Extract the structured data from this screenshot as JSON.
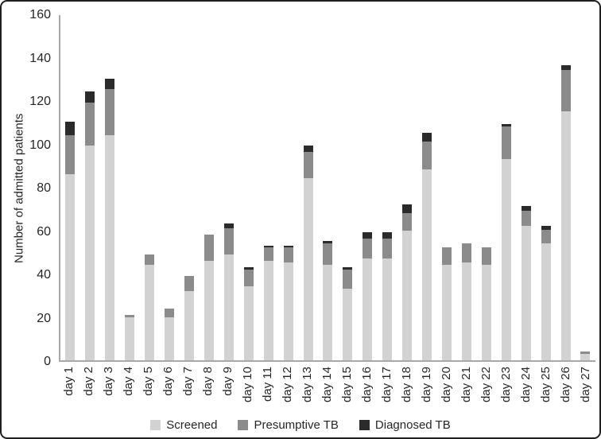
{
  "chart_data": {
    "type": "bar",
    "stacked": true,
    "ylabel": "Number of admitted patients",
    "xlabel": "",
    "ylim": [
      0,
      160
    ],
    "ytick_step": 20,
    "yticks": [
      0,
      20,
      40,
      60,
      80,
      100,
      120,
      140,
      160
    ],
    "grid": false,
    "legend_position": "bottom",
    "categories": [
      "day 1",
      "day 2",
      "day 3",
      "day 4",
      "day 5",
      "day 6",
      "day 7",
      "day 8",
      "day 9",
      "day 10",
      "day 11",
      "day 12",
      "day 13",
      "day 14",
      "day 15",
      "day 16",
      "day 17",
      "day 18",
      "day 19",
      "day 20",
      "day 21",
      "day 22",
      "day 23",
      "day 24",
      "day 25",
      "day 26",
      "day 27"
    ],
    "series": [
      {
        "name": "Screened",
        "color": "#d2d2d2",
        "values": [
          86,
          99,
          104,
          20,
          44,
          20,
          32,
          46,
          49,
          34,
          46,
          45,
          84,
          44,
          33,
          47,
          47,
          60,
          88,
          44,
          45,
          44,
          93,
          62,
          54,
          115,
          3
        ]
      },
      {
        "name": "Presumptive TB",
        "color": "#8b8b8b",
        "values": [
          18,
          20,
          21,
          1,
          5,
          4,
          7,
          12,
          12,
          8,
          6,
          7,
          12,
          10,
          9,
          9,
          9,
          8,
          13,
          8,
          9,
          8,
          15,
          7,
          6,
          19,
          1
        ]
      },
      {
        "name": "Diagnosed TB",
        "color": "#2b2b2b",
        "values": [
          6,
          5,
          5,
          0,
          0,
          0,
          0,
          0,
          2,
          1,
          1,
          1,
          3,
          1,
          1,
          3,
          3,
          4,
          4,
          0,
          0,
          0,
          1,
          2,
          2,
          2,
          0
        ]
      }
    ],
    "colors": {
      "axis": "#a8a8a8",
      "text": "#262626",
      "border": "#1f1f1f"
    }
  }
}
